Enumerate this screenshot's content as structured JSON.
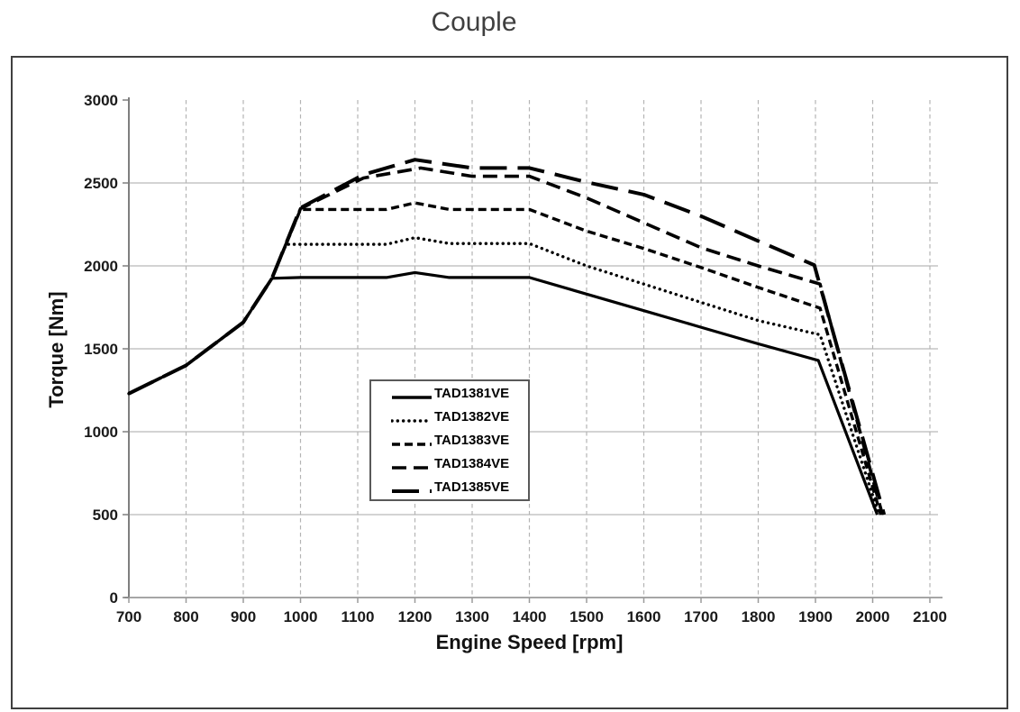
{
  "figure": {
    "title": "Couple",
    "title_color": "#3f3f3f"
  },
  "chart_data": {
    "type": "line",
    "title": "Couple",
    "xlabel": "Engine Speed [rpm]",
    "ylabel": "Torque [Nm]",
    "xlim": [
      700,
      2100
    ],
    "ylim": [
      0,
      3000
    ],
    "xticks": [
      700,
      800,
      900,
      1000,
      1100,
      1200,
      1300,
      1400,
      1500,
      1600,
      1700,
      1800,
      1900,
      2000,
      2100
    ],
    "yticks": [
      0,
      500,
      1000,
      1500,
      2000,
      2500,
      3000
    ],
    "grid": {
      "horizontal": "solid",
      "vertical": "dashed",
      "color": "#b9b9b9"
    },
    "legend_position": "inside-center-left",
    "line_color": "#000000",
    "axis_color": "#8c8c8c",
    "tick_text_color": "#1a1a1a",
    "series": [
      {
        "name": "TAD1381VE",
        "style": "solid",
        "points": [
          [
            700,
            1230
          ],
          [
            800,
            1400
          ],
          [
            900,
            1660
          ],
          [
            950,
            1925
          ],
          [
            1000,
            1930
          ],
          [
            1150,
            1930
          ],
          [
            1200,
            1960
          ],
          [
            1260,
            1930
          ],
          [
            1400,
            1930
          ],
          [
            1500,
            1830
          ],
          [
            1600,
            1730
          ],
          [
            1700,
            1630
          ],
          [
            1800,
            1530
          ],
          [
            1905,
            1430
          ],
          [
            2008,
            500
          ]
        ]
      },
      {
        "name": "TAD1382VE",
        "style": "dotted",
        "points": [
          [
            700,
            1230
          ],
          [
            800,
            1400
          ],
          [
            900,
            1660
          ],
          [
            950,
            1925
          ],
          [
            975,
            2130
          ],
          [
            1150,
            2130
          ],
          [
            1200,
            2170
          ],
          [
            1260,
            2135
          ],
          [
            1400,
            2135
          ],
          [
            1500,
            2000
          ],
          [
            1600,
            1890
          ],
          [
            1700,
            1780
          ],
          [
            1800,
            1670
          ],
          [
            1908,
            1585
          ],
          [
            2011,
            500
          ]
        ]
      },
      {
        "name": "TAD1383VE",
        "style": "short-dash",
        "points": [
          [
            700,
            1230
          ],
          [
            800,
            1400
          ],
          [
            900,
            1660
          ],
          [
            950,
            1925
          ],
          [
            1000,
            2340
          ],
          [
            1150,
            2340
          ],
          [
            1200,
            2380
          ],
          [
            1260,
            2340
          ],
          [
            1400,
            2340
          ],
          [
            1500,
            2210
          ],
          [
            1600,
            2105
          ],
          [
            1700,
            1990
          ],
          [
            1800,
            1870
          ],
          [
            1908,
            1745
          ],
          [
            2014,
            500
          ]
        ]
      },
      {
        "name": "TAD1384VE",
        "style": "long-dash",
        "points": [
          [
            700,
            1230
          ],
          [
            800,
            1400
          ],
          [
            900,
            1660
          ],
          [
            950,
            1925
          ],
          [
            1000,
            2345
          ],
          [
            1110,
            2530
          ],
          [
            1210,
            2590
          ],
          [
            1300,
            2540
          ],
          [
            1400,
            2540
          ],
          [
            1500,
            2410
          ],
          [
            1600,
            2260
          ],
          [
            1700,
            2110
          ],
          [
            1800,
            2000
          ],
          [
            1908,
            1890
          ],
          [
            2017,
            500
          ]
        ]
      },
      {
        "name": "TAD1385VE",
        "style": "xlong-dash",
        "points": [
          [
            700,
            1230
          ],
          [
            800,
            1400
          ],
          [
            900,
            1660
          ],
          [
            950,
            1925
          ],
          [
            1000,
            2350
          ],
          [
            1110,
            2550
          ],
          [
            1200,
            2640
          ],
          [
            1300,
            2590
          ],
          [
            1400,
            2590
          ],
          [
            1500,
            2505
          ],
          [
            1600,
            2430
          ],
          [
            1700,
            2300
          ],
          [
            1800,
            2150
          ],
          [
            1898,
            2005
          ],
          [
            2020,
            500
          ]
        ]
      }
    ]
  }
}
